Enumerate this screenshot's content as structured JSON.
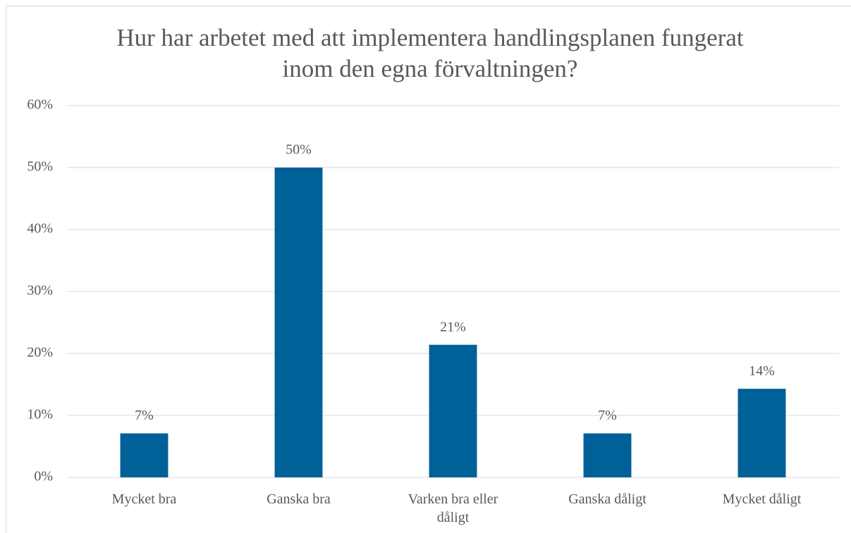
{
  "chart_data": {
    "type": "bar",
    "title": "Hur har arbetet med att implementera handlingsplanen fungerat inom den egna förvaltningen?",
    "categories": [
      "Mycket bra",
      "Ganska bra",
      "Varken bra eller dåligt",
      "Ganska dåligt",
      "Mycket dåligt"
    ],
    "values": [
      7.1,
      50,
      21.4,
      7.1,
      14.3
    ],
    "value_labels": [
      "7%",
      "50%",
      "21%",
      "7%",
      "14%"
    ],
    "color": "#006098",
    "ylim": [
      0,
      60
    ],
    "yticks": [
      {
        "value": 0,
        "label": "0%"
      },
      {
        "value": 10,
        "label": "10%"
      },
      {
        "value": 20,
        "label": "20%"
      },
      {
        "value": 30,
        "label": "30%"
      },
      {
        "value": 40,
        "label": "40%"
      },
      {
        "value": 50,
        "label": "50%"
      },
      {
        "value": 60,
        "label": "60%"
      }
    ],
    "grid": true
  }
}
